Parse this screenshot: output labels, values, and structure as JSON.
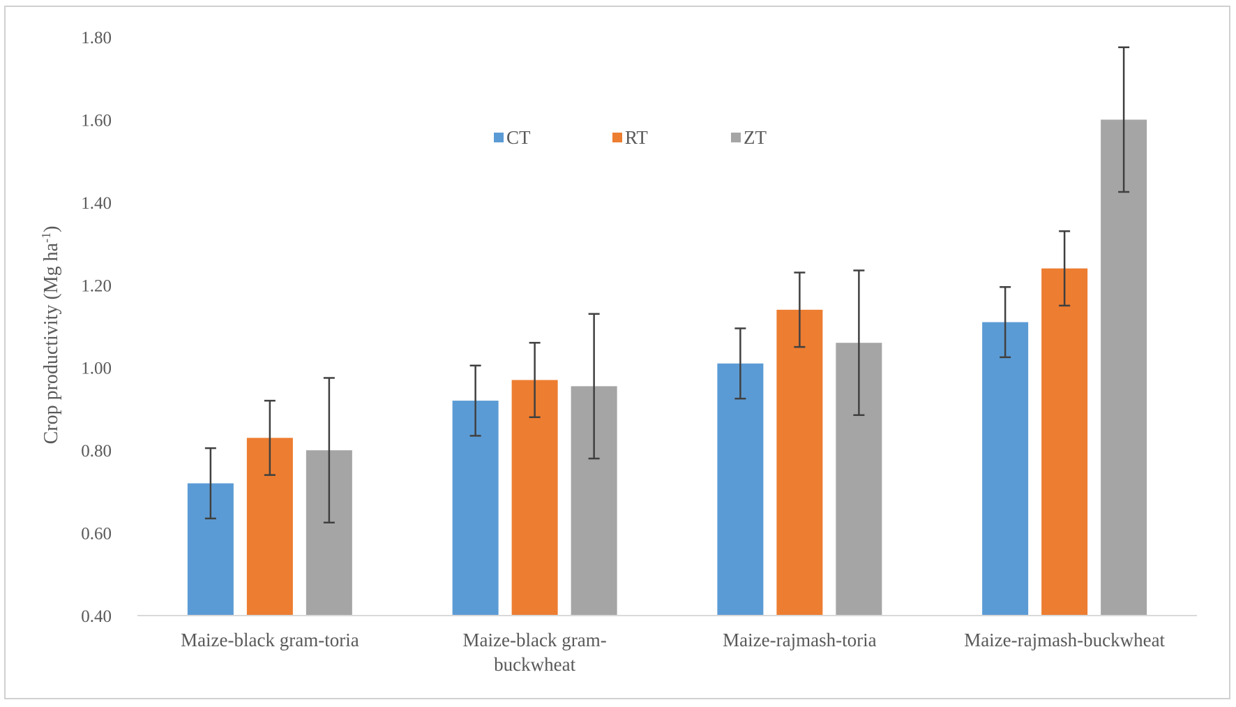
{
  "chart_data": {
    "type": "bar",
    "title": "",
    "xlabel": "",
    "ylabel": "Crop productivity (Mg ha",
    "ylabel_sup": "-1",
    "ylabel_close": ")",
    "ylim": [
      0.4,
      1.8
    ],
    "yticks": [
      "0.40",
      "0.60",
      "0.80",
      "1.00",
      "1.20",
      "1.40",
      "1.60",
      "1.80"
    ],
    "grid": false,
    "legend_position": "top-center",
    "categories": [
      [
        "Maize-black gram-toria"
      ],
      [
        "Maize-black gram-",
        "buckwheat"
      ],
      [
        "Maize-rajmash-toria"
      ],
      [
        "Maize-rajmash-buckwheat"
      ]
    ],
    "series": [
      {
        "name": "CT",
        "color": "#5b9bd5",
        "values": [
          0.72,
          0.92,
          1.01,
          1.11
        ],
        "errors": [
          0.085,
          0.085,
          0.085,
          0.085
        ]
      },
      {
        "name": "RT",
        "color": "#ed7d31",
        "values": [
          0.83,
          0.97,
          1.14,
          1.24
        ],
        "errors": [
          0.09,
          0.09,
          0.09,
          0.09
        ]
      },
      {
        "name": "ZT",
        "color": "#a5a5a5",
        "values": [
          0.8,
          0.955,
          1.06,
          1.6
        ],
        "errors": [
          0.175,
          0.175,
          0.175,
          0.175
        ]
      }
    ]
  }
}
